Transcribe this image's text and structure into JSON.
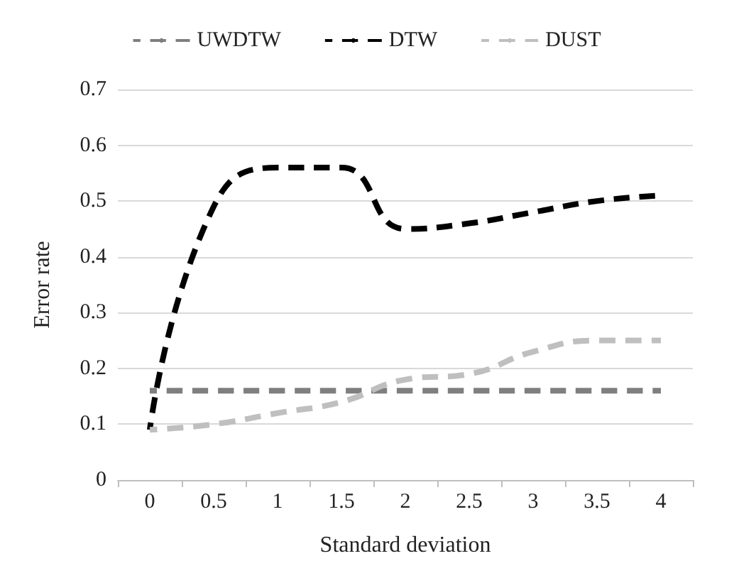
{
  "chart_data": {
    "type": "line",
    "xlabel": "Standard deviation",
    "ylabel": "Error rate",
    "categories": [
      "0",
      "0.5",
      "1",
      "1.5",
      "2",
      "2.5",
      "3",
      "3.5",
      "4"
    ],
    "series": [
      {
        "name": "UWDTW",
        "color": "#7f7f7f",
        "values": [
          0.16,
          0.16,
          0.16,
          0.16,
          0.16,
          0.16,
          0.16,
          0.16,
          0.16
        ]
      },
      {
        "name": "DTW",
        "color": "#000000",
        "values": [
          0.09,
          0.49,
          0.56,
          0.56,
          0.45,
          0.46,
          0.48,
          0.5,
          0.51
        ]
      },
      {
        "name": "DUST",
        "color": "#bfbfbf",
        "values": [
          0.09,
          0.1,
          0.12,
          0.14,
          0.18,
          0.19,
          0.23,
          0.25,
          0.25
        ]
      }
    ],
    "ylim": [
      0,
      0.7
    ],
    "yticks": [
      0,
      0.1,
      0.2,
      0.3,
      0.4,
      0.5,
      0.6,
      0.7
    ],
    "grid": "y",
    "legend": "top",
    "marker": "none",
    "line_style": "dashed"
  }
}
